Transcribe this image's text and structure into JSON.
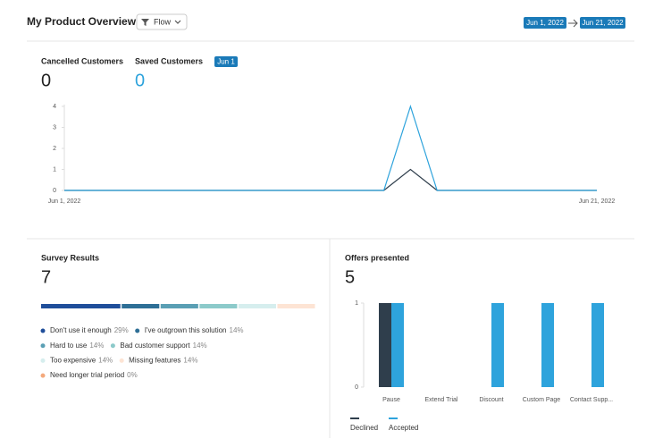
{
  "header": {
    "title": "My Product Overview",
    "filter": "Flow",
    "date_start": "Jun 1, 2022",
    "date_end": "Jun 21, 2022"
  },
  "customers": {
    "cancelled_label": "Cancelled Customers",
    "cancelled_value": 0,
    "saved_label": "Saved Customers",
    "saved_value": 0,
    "date_badge": "Jun 1"
  },
  "chart_data": [
    {
      "type": "line",
      "categories": [
        "Jun 1, 2022",
        null,
        null,
        null,
        null,
        null,
        null,
        null,
        null,
        null,
        null,
        null,
        null,
        null,
        null,
        null,
        null,
        null,
        null,
        null,
        "Jun 21, 2022"
      ],
      "series": [
        {
          "color": "#2f3e4c",
          "values": [
            0,
            0,
            0,
            0,
            0,
            0,
            0,
            0,
            0,
            0,
            0,
            0,
            0,
            1,
            0,
            0,
            0,
            0,
            0,
            0,
            0
          ]
        },
        {
          "color": "#2ea3dc",
          "values": [
            0,
            0,
            0,
            0,
            0,
            0,
            0,
            0,
            0,
            0,
            0,
            0,
            0,
            4,
            0,
            0,
            0,
            0,
            0,
            0,
            0
          ]
        }
      ],
      "ylim": [
        0,
        4
      ],
      "yticks": [
        0,
        1,
        2,
        3,
        4
      ]
    },
    {
      "type": "stacked_hbar",
      "title": "Survey Results",
      "total": 7,
      "categories": [
        "Don't use it enough",
        "I've outgrown this solution",
        "Hard to use",
        "Bad customer support",
        "Too expensive",
        "Missing features",
        "Need longer trial period"
      ],
      "values": [
        29,
        14,
        14,
        14,
        14,
        14,
        0
      ],
      "value_labels": [
        "29%",
        "14%",
        "14%",
        "14%",
        "14%",
        "14%",
        "0%"
      ],
      "colors": [
        "#1f4e9a",
        "#2e6f96",
        "#5a9fb4",
        "#8ccaca",
        "#d6eeee",
        "#fde4d4",
        "#f4a97c"
      ]
    },
    {
      "type": "bar",
      "title": "Offers presented",
      "total": 5,
      "categories": [
        "Pause",
        "Extend Trial",
        "Discount",
        "Custom Page",
        "Contact Supp..."
      ],
      "series": [
        {
          "name": "Declined",
          "color": "#2f3e4c",
          "values": [
            1,
            0,
            0,
            0,
            0
          ]
        },
        {
          "name": "Accepted",
          "color": "#2ea3dc",
          "values": [
            1,
            0,
            1,
            1,
            1
          ]
        }
      ],
      "ylim": [
        0,
        1
      ],
      "yticks": [
        0,
        1
      ]
    }
  ]
}
